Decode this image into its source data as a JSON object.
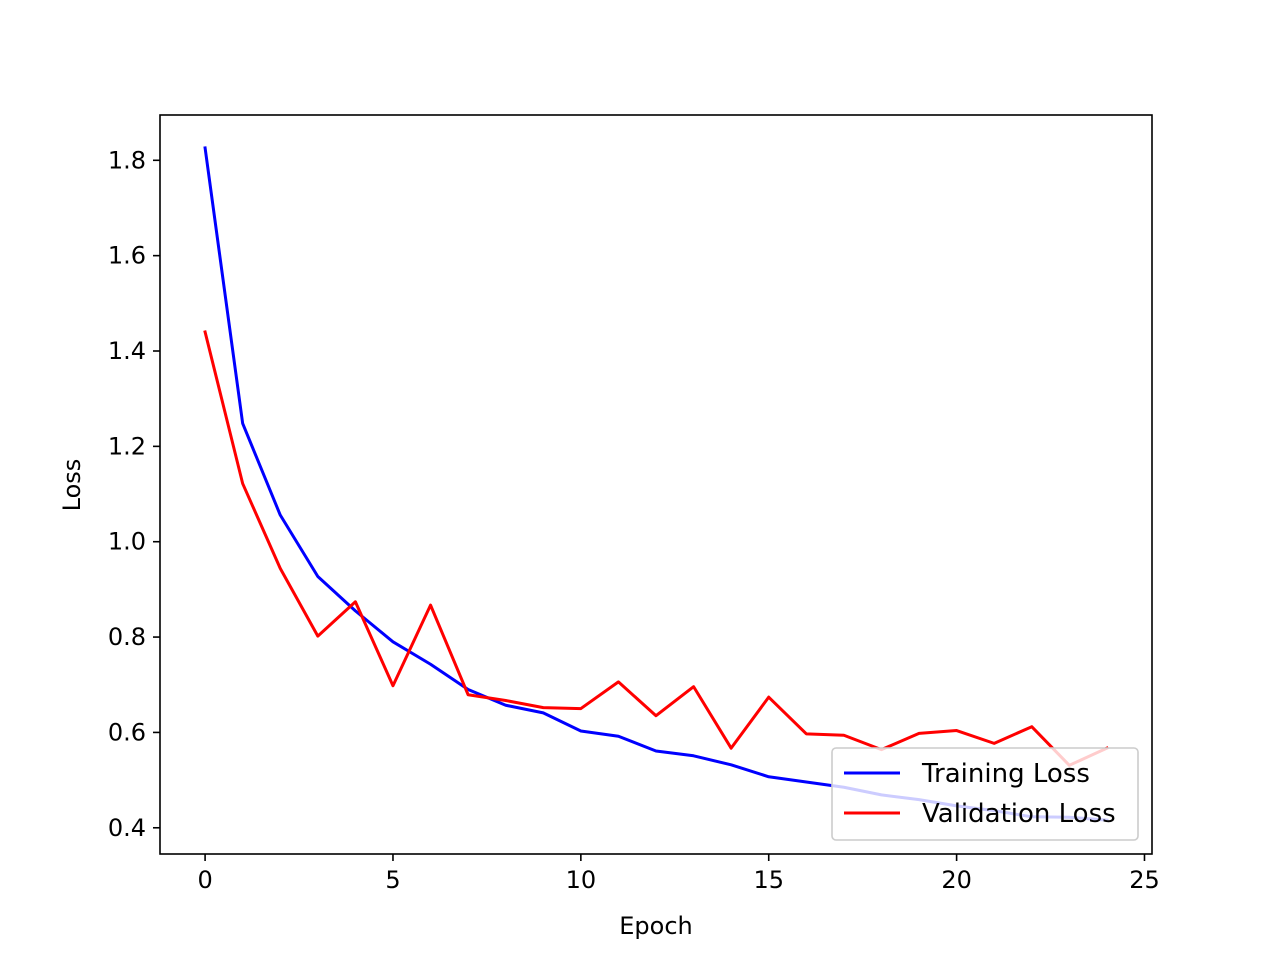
{
  "chart_data": {
    "type": "line",
    "title": "",
    "xlabel": "Epoch",
    "ylabel": "Loss",
    "xlim": [
      -1.2,
      25.2
    ],
    "ylim": [
      0.345,
      1.895
    ],
    "xticks": [
      0,
      5,
      10,
      15,
      20,
      25
    ],
    "yticks": [
      0.4,
      0.6,
      0.8,
      1.0,
      1.2,
      1.4,
      1.6,
      1.8
    ],
    "grid": false,
    "legend_position": "bottom-right",
    "x": [
      0,
      1,
      2,
      3,
      4,
      5,
      6,
      7,
      8,
      9,
      10,
      11,
      12,
      13,
      14,
      15,
      16,
      17,
      18,
      19,
      20,
      21,
      22,
      23,
      24
    ],
    "series": [
      {
        "name": "Training Loss",
        "color": "#0000ff",
        "values": [
          1.826,
          1.248,
          1.056,
          0.927,
          0.855,
          0.79,
          0.743,
          0.69,
          0.657,
          0.641,
          0.603,
          0.592,
          0.561,
          0.551,
          0.532,
          0.507,
          0.496,
          0.485,
          0.469,
          0.459,
          0.446,
          0.436,
          0.423,
          0.422,
          0.416
        ]
      },
      {
        "name": "Validation Loss",
        "color": "#ff0000",
        "values": [
          1.44,
          1.122,
          0.944,
          0.802,
          0.874,
          0.698,
          0.867,
          0.679,
          0.667,
          0.652,
          0.65,
          0.706,
          0.635,
          0.696,
          0.567,
          0.674,
          0.597,
          0.594,
          0.564,
          0.598,
          0.604,
          0.577,
          0.612,
          0.531,
          0.567
        ]
      }
    ]
  }
}
